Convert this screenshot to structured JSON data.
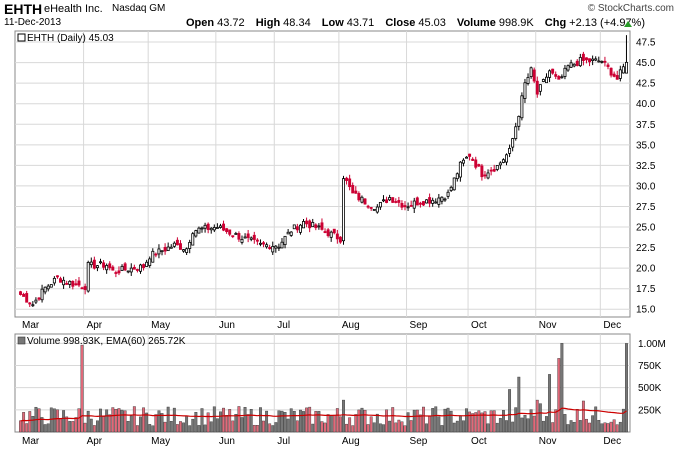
{
  "header": {
    "symbol": "EHTH",
    "company": "eHealth Inc.",
    "exchange": "Nasdaq GM",
    "date": "11-Dec-2013",
    "brand": "© StockCharts.com",
    "open_label": "Open",
    "open": "43.72",
    "high_label": "High",
    "high": "48.34",
    "low_label": "Low",
    "low": "43.71",
    "close_label": "Close",
    "close": "45.03",
    "volume_label": "Volume",
    "volume": "998.9K",
    "chg_label": "Chg",
    "chg": "+2.13 (+4.97%)"
  },
  "colors": {
    "up": "#000000",
    "down": "#cc0033",
    "grid": "#d8d8d8",
    "ema": "#cc0000",
    "vol_up": "#777777",
    "vol_down": "#e06a7a"
  },
  "chart_data": [
    {
      "type": "candlestick",
      "legend": "EHTH (Daily) 45.03",
      "months": [
        "Mar",
        "Apr",
        "May",
        "Jun",
        "Jul",
        "Aug",
        "Sep",
        "Oct",
        "Nov",
        "Dec"
      ],
      "month_start_day": [
        0,
        21,
        42,
        64,
        83,
        104,
        126,
        146,
        168,
        189
      ],
      "total_days": 198,
      "y_ticks": [
        "15.0",
        "17.5",
        "20.0",
        "22.5",
        "25.0",
        "27.5",
        "30.0",
        "32.5",
        "35.0",
        "37.5",
        "40.0",
        "42.5",
        "45.0",
        "47.5"
      ],
      "ylim": [
        14.3,
        48.6
      ],
      "anchors": [
        [
          0,
          16.8
        ],
        [
          4,
          15.6
        ],
        [
          8,
          17.6
        ],
        [
          12,
          18.8
        ],
        [
          17,
          18.1
        ],
        [
          21,
          17.8
        ],
        [
          22,
          20.3
        ],
        [
          28,
          20.4
        ],
        [
          30,
          19.6
        ],
        [
          40,
          20.2
        ],
        [
          42,
          21.5
        ],
        [
          50,
          22.8
        ],
        [
          54,
          22.4
        ],
        [
          56,
          24.6
        ],
        [
          64,
          25.0
        ],
        [
          70,
          24.0
        ],
        [
          78,
          22.8
        ],
        [
          84,
          22.8
        ],
        [
          88,
          24.6
        ],
        [
          92,
          25.6
        ],
        [
          97,
          24.8
        ],
        [
          104,
          23.6
        ],
        [
          105,
          31.2
        ],
        [
          108,
          29.0
        ],
        [
          112,
          28.1
        ],
        [
          116,
          27.4
        ],
        [
          120,
          28.6
        ],
        [
          125,
          27.6
        ],
        [
          129,
          28.0
        ],
        [
          135,
          28.4
        ],
        [
          139,
          29.0
        ],
        [
          143,
          32.5
        ],
        [
          146,
          33.8
        ],
        [
          150,
          31.5
        ],
        [
          155,
          32.4
        ],
        [
          159,
          34.2
        ],
        [
          162,
          38.8
        ],
        [
          164,
          42.4
        ],
        [
          166,
          44.0
        ],
        [
          168,
          41.2
        ],
        [
          172,
          44.0
        ],
        [
          175,
          42.6
        ],
        [
          178,
          44.5
        ],
        [
          182,
          45.2
        ],
        [
          189,
          45.2
        ],
        [
          194,
          43.0
        ],
        [
          197,
          45.03
        ]
      ],
      "last": {
        "open": 43.72,
        "high": 48.34,
        "low": 43.71,
        "close": 45.03
      }
    },
    {
      "type": "bar",
      "legend": "Volume 998.93K, EMA(60) 265.72K",
      "y_ticks": [
        "250K",
        "500K",
        "750K",
        "1.00M"
      ],
      "ylim": [
        0,
        1060000
      ],
      "avg_base": 200000,
      "spikes": [
        [
          20,
          980000
        ],
        [
          105,
          360000
        ],
        [
          148,
          220000
        ],
        [
          159,
          480000
        ],
        [
          162,
          620000
        ],
        [
          168,
          360000
        ],
        [
          169,
          320000
        ],
        [
          172,
          650000
        ],
        [
          175,
          830000
        ],
        [
          176,
          1000000
        ],
        [
          183,
          350000
        ],
        [
          197,
          998930
        ]
      ]
    }
  ]
}
